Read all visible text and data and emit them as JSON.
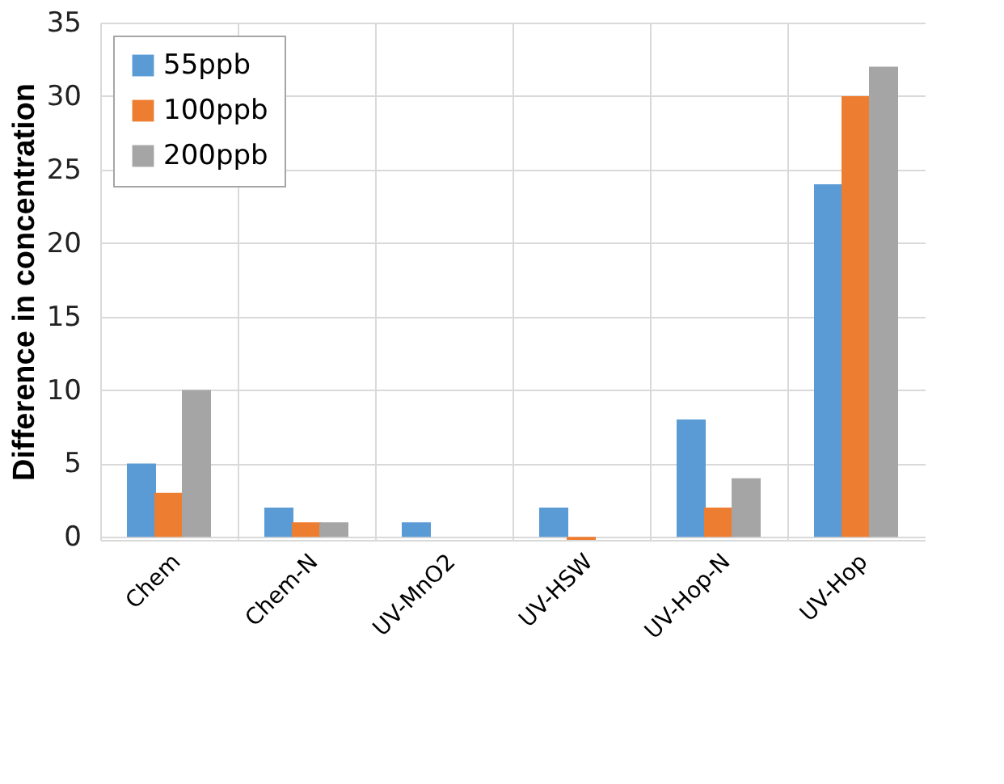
{
  "chart_data": {
    "type": "bar",
    "ylabel": "Difference in concentration",
    "categories": [
      "Chem",
      "Chem-N",
      "UV-MnO2",
      "UV-HSW",
      "UV-Hop-N",
      "UV-Hop"
    ],
    "series": [
      {
        "name": "55ppb",
        "color": "#5b9bd5",
        "values": [
          5,
          2,
          1,
          2,
          8,
          24
        ]
      },
      {
        "name": "100ppb",
        "color": "#ed7d31",
        "values": [
          3,
          1,
          0,
          -0.2,
          2,
          30
        ]
      },
      {
        "name": "200ppb",
        "color": "#a5a5a5",
        "values": [
          10,
          1,
          0,
          0,
          4,
          32
        ]
      }
    ],
    "ylim": [
      -0.2,
      35
    ],
    "yticks": [
      0,
      5,
      10,
      15,
      20,
      25,
      30,
      35
    ],
    "grid": true,
    "legend": "top left"
  }
}
